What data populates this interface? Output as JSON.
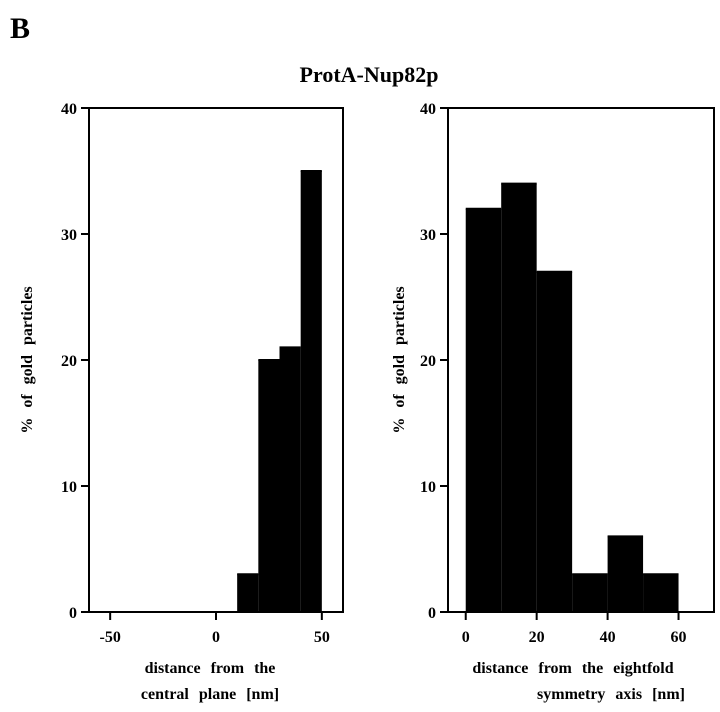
{
  "panel_label": "B",
  "chart_data": [
    {
      "type": "bar",
      "title": "ProtA-Nup82p",
      "ylabel": "% of gold particles",
      "xlabel_lines": [
        "distance from the",
        "central plane [nm]"
      ],
      "xlim": [
        -60,
        60
      ],
      "ylim": [
        0,
        40
      ],
      "xticks": [
        -50,
        0,
        50
      ],
      "yticks": [
        0,
        10,
        20,
        30,
        40
      ],
      "bin_width": 10,
      "bins": [
        {
          "x0": -50,
          "x1": -40,
          "value": 0
        },
        {
          "x0": -40,
          "x1": -30,
          "value": 0
        },
        {
          "x0": -30,
          "x1": -20,
          "value": 0
        },
        {
          "x0": -20,
          "x1": -10,
          "value": 0
        },
        {
          "x0": -10,
          "x1": 0,
          "value": 0
        },
        {
          "x0": 0,
          "x1": 10,
          "value": 0
        },
        {
          "x0": 10,
          "x1": 20,
          "value": 3
        },
        {
          "x0": 20,
          "x1": 30,
          "value": 20
        },
        {
          "x0": 30,
          "x1": 40,
          "value": 21
        },
        {
          "x0": 40,
          "x1": 50,
          "value": 35
        }
      ],
      "bar_color": "#000000"
    },
    {
      "type": "bar",
      "ylabel": "% of gold particles",
      "xlabel_lines": [
        "distance from the eightfold",
        "symmetry axis [nm]"
      ],
      "xlim": [
        -5,
        70
      ],
      "ylim": [
        0,
        40
      ],
      "xticks": [
        0,
        20,
        40,
        60
      ],
      "yticks": [
        0,
        10,
        20,
        30,
        40
      ],
      "bin_width": 10,
      "bins": [
        {
          "x0": 0,
          "x1": 10,
          "value": 32
        },
        {
          "x0": 10,
          "x1": 20,
          "value": 34
        },
        {
          "x0": 20,
          "x1": 30,
          "value": 27
        },
        {
          "x0": 30,
          "x1": 40,
          "value": 3
        },
        {
          "x0": 40,
          "x1": 50,
          "value": 6
        },
        {
          "x0": 50,
          "x1": 60,
          "value": 3
        }
      ],
      "bar_color": "#000000"
    }
  ]
}
